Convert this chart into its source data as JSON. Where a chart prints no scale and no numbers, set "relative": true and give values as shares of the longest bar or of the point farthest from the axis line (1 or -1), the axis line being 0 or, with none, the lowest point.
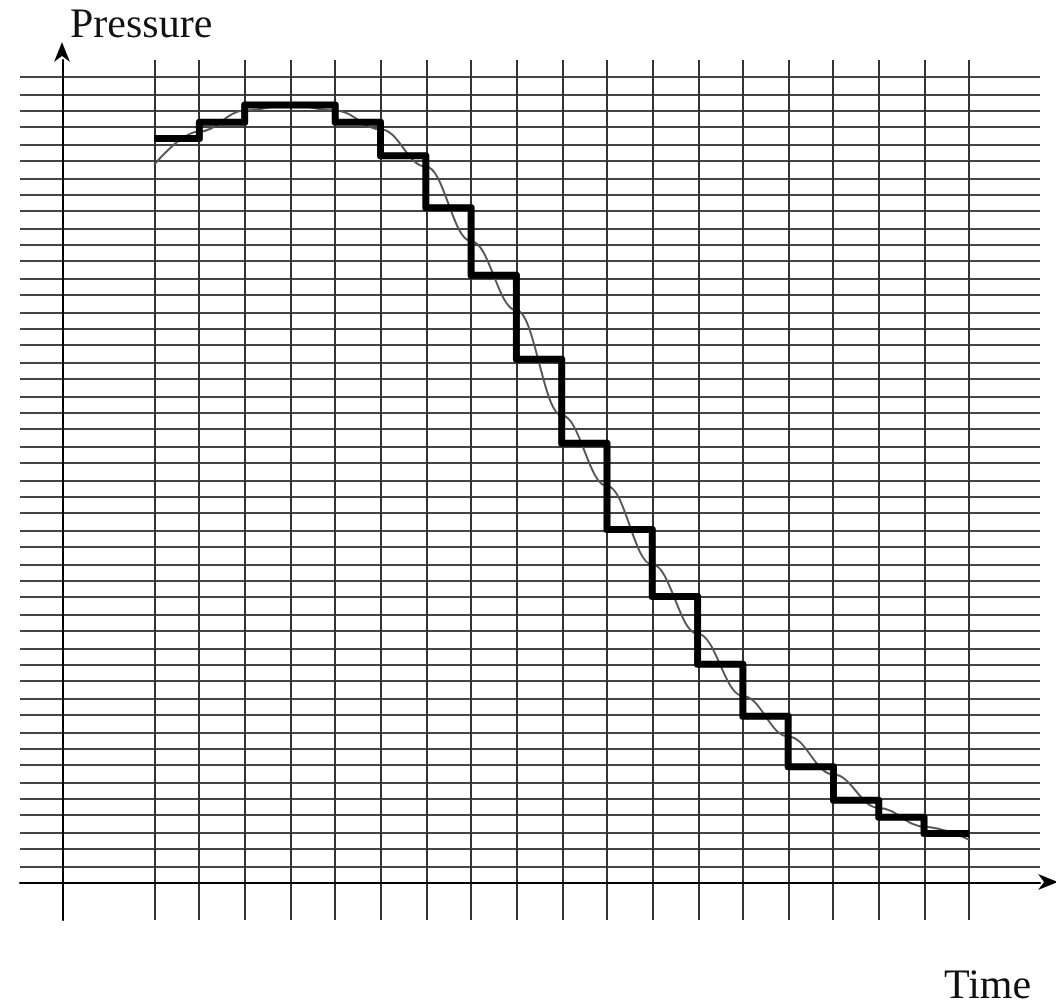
{
  "chart_data": {
    "type": "step",
    "relative": true,
    "xlabel": "Time",
    "ylabel": "Pressure",
    "grid": true,
    "categories": [
      null,
      null,
      null,
      null,
      null,
      null,
      null,
      null,
      null,
      null,
      null,
      null,
      null,
      null,
      null,
      null,
      null,
      null,
      null
    ],
    "series": [
      {
        "color": "#000000",
        "values": [
          0.957,
          0.978,
          1,
          1,
          0.978,
          0.935,
          0.868,
          0.781,
          0.673,
          0.565,
          0.454,
          0.368,
          0.281,
          0.214,
          0.149,
          0.106,
          0.084,
          0.063,
          0.063
        ]
      },
      {
        "type": "line",
        "color": "#555555",
        "values": [
          0.923,
          0.966,
          0.993,
          1,
          0.993,
          0.969,
          0.921,
          0.825,
          0.736,
          0.601,
          0.51,
          0.409,
          0.32,
          0.24,
          0.188,
          0.139,
          0.096,
          0.072,
          0.055
        ]
      }
    ]
  }
}
